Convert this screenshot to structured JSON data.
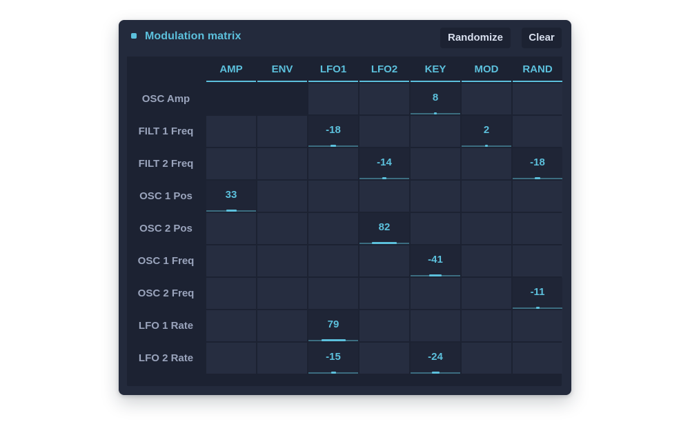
{
  "panel": {
    "title": "Modulation matrix",
    "randomize_label": "Randomize",
    "clear_label": "Clear"
  },
  "colors": {
    "accent": "#5cc0dc",
    "panel_bg": "#232a3c",
    "cell_bg": "#262d40",
    "row_label": "#9aa4bc"
  },
  "icons": {
    "status": "status-led-icon"
  },
  "matrix": {
    "columns": [
      "AMP",
      "ENV",
      "LFO1",
      "LFO2",
      "KEY",
      "MOD",
      "RAND"
    ],
    "rows": [
      {
        "label": "OSC Amp",
        "disabled": [
          0,
          1
        ],
        "values": [
          null,
          null,
          null,
          null,
          "8",
          null,
          null
        ]
      },
      {
        "label": "FILT 1 Freq",
        "disabled": [],
        "values": [
          null,
          null,
          "-18",
          null,
          null,
          "2",
          null
        ]
      },
      {
        "label": "FILT 2 Freq",
        "disabled": [],
        "values": [
          null,
          null,
          null,
          "-14",
          null,
          null,
          "-18"
        ]
      },
      {
        "label": "OSC 1 Pos",
        "disabled": [],
        "values": [
          "33",
          null,
          null,
          null,
          null,
          null,
          null
        ]
      },
      {
        "label": "OSC 2 Pos",
        "disabled": [],
        "values": [
          null,
          null,
          null,
          "82",
          null,
          null,
          null
        ]
      },
      {
        "label": "OSC 1 Freq",
        "disabled": [],
        "values": [
          null,
          null,
          null,
          null,
          "-41",
          null,
          null
        ]
      },
      {
        "label": "OSC 2 Freq",
        "disabled": [],
        "values": [
          null,
          null,
          null,
          null,
          null,
          null,
          "-11"
        ]
      },
      {
        "label": "LFO 1 Rate",
        "disabled": [],
        "values": [
          null,
          null,
          "79",
          null,
          null,
          null,
          null
        ]
      },
      {
        "label": "LFO 2 Rate",
        "disabled": [],
        "values": [
          null,
          null,
          "-15",
          null,
          "-24",
          null,
          null
        ]
      }
    ]
  }
}
